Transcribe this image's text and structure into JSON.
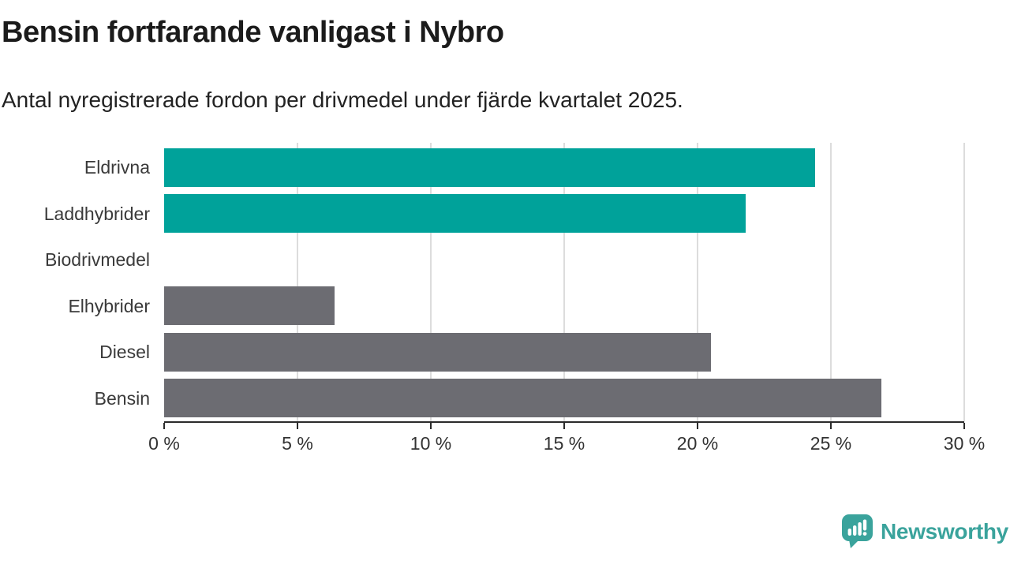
{
  "chart_data": {
    "type": "bar",
    "orientation": "horizontal",
    "title": "Bensin fortfarande vanligast i Nybro",
    "subtitle": "Antal nyregistrerade fordon per drivmedel under fjärde kvartalet 2025.",
    "categories": [
      "Eldrivna",
      "Laddhybrider",
      "Biodrivmedel",
      "Elhybrider",
      "Diesel",
      "Bensin"
    ],
    "values": [
      24.4,
      21.8,
      0,
      6.4,
      20.5,
      26.9
    ],
    "unit": "%",
    "bar_colors": [
      "#00a29a",
      "#00a29a",
      "#6c6c72",
      "#6c6c72",
      "#6c6c72",
      "#6c6c72"
    ],
    "xlim": [
      0,
      30
    ],
    "x_ticks": [
      {
        "value": 0,
        "label": "0 %"
      },
      {
        "value": 5,
        "label": "5 %"
      },
      {
        "value": 10,
        "label": "10 %"
      },
      {
        "value": 15,
        "label": "15 %"
      },
      {
        "value": 20,
        "label": "20 %"
      },
      {
        "value": 25,
        "label": "25 %"
      },
      {
        "value": 30,
        "label": "30 %"
      }
    ],
    "grid": "vertical-only",
    "legend": false
  },
  "branding": {
    "name": "Newsworthy",
    "color": "#3aa39c",
    "icon": "speech-bubble-bar-chart-icon"
  },
  "colors": {
    "highlight_bar": "#00a29a",
    "default_bar": "#6c6c72",
    "gridline": "#dcdcdc",
    "axis": "#2b2b2b",
    "label_text": "#3a3a3a",
    "title_text": "#1b1b1b"
  }
}
